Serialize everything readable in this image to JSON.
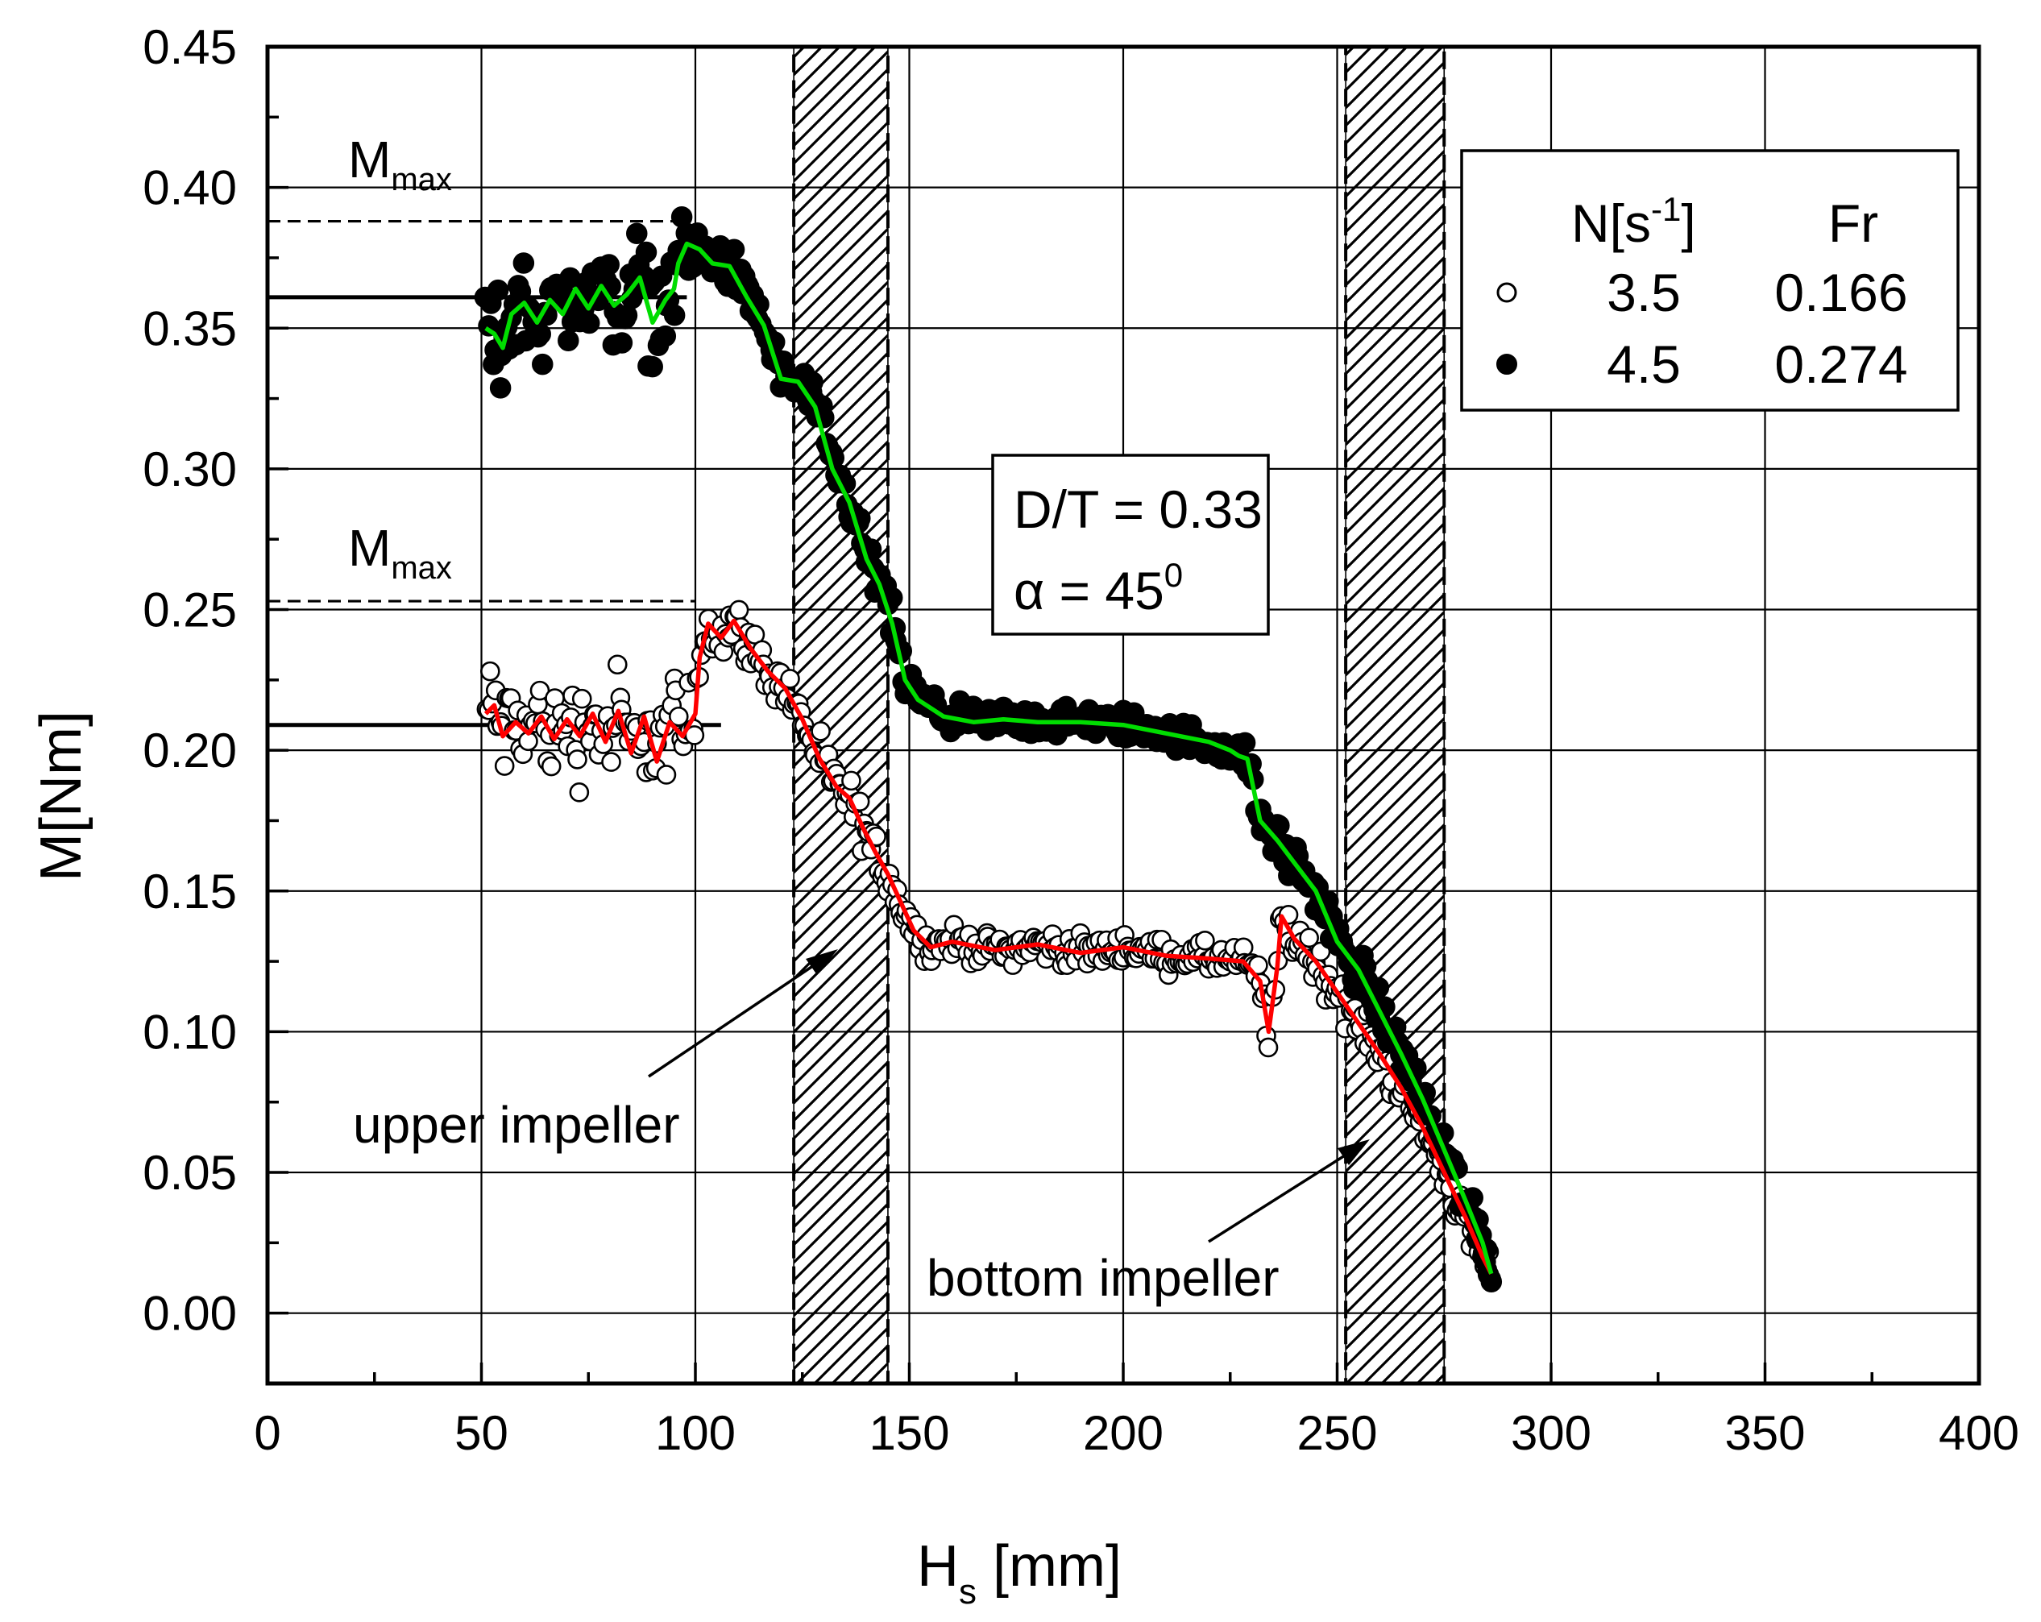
{
  "chart_data": {
    "type": "scatter",
    "title": "",
    "xlabel": "H",
    "xlabel_sub": "s",
    "xlabel_unit": " [mm]",
    "ylabel": "M[Nm]",
    "xlim": [
      0,
      400
    ],
    "ylim": [
      -0.025,
      0.45
    ],
    "xticks": [
      "0",
      "50",
      "100",
      "150",
      "200",
      "250",
      "300",
      "350",
      "400"
    ],
    "xtick_values": [
      0,
      50,
      100,
      150,
      200,
      250,
      300,
      350,
      400
    ],
    "yticks": [
      "0.00",
      "0.05",
      "0.10",
      "0.15",
      "0.20",
      "0.25",
      "0.30",
      "0.35",
      "0.40",
      "0.45"
    ],
    "ytick_values": [
      0,
      0.05,
      0.1,
      0.15,
      0.2,
      0.25,
      0.3,
      0.35,
      0.4,
      0.45
    ],
    "grid": true,
    "impeller_zones": [
      {
        "name": "upper impeller",
        "x_range": [
          123,
          145
        ]
      },
      {
        "name": "bottom impeller",
        "x_range": [
          252,
          275
        ]
      }
    ],
    "legend": {
      "placement": "top-right",
      "col1_header": "N[s",
      "col1_header_sup": "-1",
      "col1_header_end": "]",
      "col2_header": "Fr",
      "entries": [
        {
          "marker": "open-circle",
          "N": "3.5",
          "Fr": "0.166"
        },
        {
          "marker": "filled-circle",
          "N": "4.5",
          "Fr": "0.274"
        }
      ]
    },
    "info_box": {
      "line1": "D/T = 0.33",
      "line2_prefix": "α = 45",
      "line2_sup": "0"
    },
    "annotations": {
      "mmax_main": "M",
      "mmax_sub": "max",
      "upper_label": "upper impeller",
      "bottom_label": "bottom impeller"
    },
    "reference_lines": [
      {
        "series": "N=4.5",
        "kind": "M_max",
        "value": 0.388,
        "x_range": [
          0,
          97
        ]
      },
      {
        "series": "N=4.5",
        "kind": "mean",
        "value": 0.361,
        "x_range": [
          0,
          98
        ]
      },
      {
        "series": "N=3.5",
        "kind": "M_max",
        "value": 0.253,
        "x_range": [
          0,
          100
        ]
      },
      {
        "series": "N=3.5",
        "kind": "mean",
        "value": 0.209,
        "x_range": [
          0,
          106
        ]
      }
    ],
    "series": [
      {
        "name": "N = 3.5 s^-1 (Fr = 0.166)",
        "marker": "open-circle",
        "line_color": "#ff0000",
        "trend": [
          [
            51,
            0.213
          ],
          [
            53,
            0.216
          ],
          [
            55,
            0.205
          ],
          [
            58,
            0.21
          ],
          [
            61,
            0.206
          ],
          [
            64,
            0.212
          ],
          [
            67,
            0.204
          ],
          [
            70,
            0.211
          ],
          [
            73,
            0.205
          ],
          [
            76,
            0.213
          ],
          [
            79,
            0.203
          ],
          [
            82,
            0.214
          ],
          [
            85,
            0.199
          ],
          [
            88,
            0.212
          ],
          [
            91,
            0.196
          ],
          [
            94,
            0.21
          ],
          [
            97,
            0.205
          ],
          [
            100,
            0.213
          ],
          [
            101,
            0.233
          ],
          [
            103,
            0.245
          ],
          [
            106,
            0.24
          ],
          [
            109,
            0.246
          ],
          [
            113,
            0.236
          ],
          [
            117,
            0.228
          ],
          [
            121,
            0.222
          ],
          [
            125,
            0.211
          ],
          [
            129,
            0.197
          ],
          [
            133,
            0.187
          ],
          [
            136,
            0.183
          ],
          [
            139,
            0.173
          ],
          [
            142,
            0.164
          ],
          [
            145,
            0.156
          ],
          [
            148,
            0.146
          ],
          [
            151,
            0.136
          ],
          [
            155,
            0.13
          ],
          [
            160,
            0.132
          ],
          [
            170,
            0.129
          ],
          [
            180,
            0.131
          ],
          [
            190,
            0.128
          ],
          [
            200,
            0.13
          ],
          [
            210,
            0.127
          ],
          [
            220,
            0.126
          ],
          [
            228,
            0.125
          ],
          [
            232,
            0.118
          ],
          [
            234,
            0.1
          ],
          [
            236,
            0.123
          ],
          [
            237,
            0.141
          ],
          [
            240,
            0.133
          ],
          [
            245,
            0.125
          ],
          [
            250,
            0.114
          ],
          [
            255,
            0.103
          ],
          [
            260,
            0.092
          ],
          [
            265,
            0.08
          ],
          [
            270,
            0.066
          ],
          [
            275,
            0.05
          ],
          [
            280,
            0.034
          ],
          [
            284,
            0.02
          ],
          [
            286,
            0.014
          ]
        ]
      },
      {
        "name": "N = 4.5 s^-1 (Fr = 0.274)",
        "marker": "filled-circle",
        "line_color": "#00dd00",
        "trend": [
          [
            51,
            0.35
          ],
          [
            53,
            0.348
          ],
          [
            55,
            0.343
          ],
          [
            57,
            0.355
          ],
          [
            60,
            0.359
          ],
          [
            63,
            0.352
          ],
          [
            66,
            0.36
          ],
          [
            69,
            0.355
          ],
          [
            72,
            0.364
          ],
          [
            75,
            0.357
          ],
          [
            78,
            0.365
          ],
          [
            81,
            0.358
          ],
          [
            84,
            0.362
          ],
          [
            87,
            0.368
          ],
          [
            90,
            0.352
          ],
          [
            93,
            0.36
          ],
          [
            95,
            0.364
          ],
          [
            96,
            0.373
          ],
          [
            98,
            0.38
          ],
          [
            101,
            0.378
          ],
          [
            104,
            0.373
          ],
          [
            108,
            0.372
          ],
          [
            112,
            0.361
          ],
          [
            116,
            0.351
          ],
          [
            120,
            0.332
          ],
          [
            124,
            0.331
          ],
          [
            128,
            0.322
          ],
          [
            132,
            0.3
          ],
          [
            136,
            0.288
          ],
          [
            140,
            0.268
          ],
          [
            143,
            0.259
          ],
          [
            146,
            0.245
          ],
          [
            149,
            0.225
          ],
          [
            152,
            0.218
          ],
          [
            158,
            0.212
          ],
          [
            165,
            0.21
          ],
          [
            172,
            0.211
          ],
          [
            180,
            0.21
          ],
          [
            190,
            0.21
          ],
          [
            200,
            0.209
          ],
          [
            210,
            0.206
          ],
          [
            220,
            0.203
          ],
          [
            225,
            0.2
          ],
          [
            227,
            0.198
          ],
          [
            229,
            0.197
          ],
          [
            232,
            0.175
          ],
          [
            236,
            0.168
          ],
          [
            240,
            0.16
          ],
          [
            245,
            0.15
          ],
          [
            250,
            0.132
          ],
          [
            255,
            0.122
          ],
          [
            260,
            0.107
          ],
          [
            265,
            0.092
          ],
          [
            270,
            0.076
          ],
          [
            275,
            0.058
          ],
          [
            280,
            0.04
          ],
          [
            284,
            0.025
          ],
          [
            286,
            0.014
          ]
        ]
      }
    ]
  }
}
